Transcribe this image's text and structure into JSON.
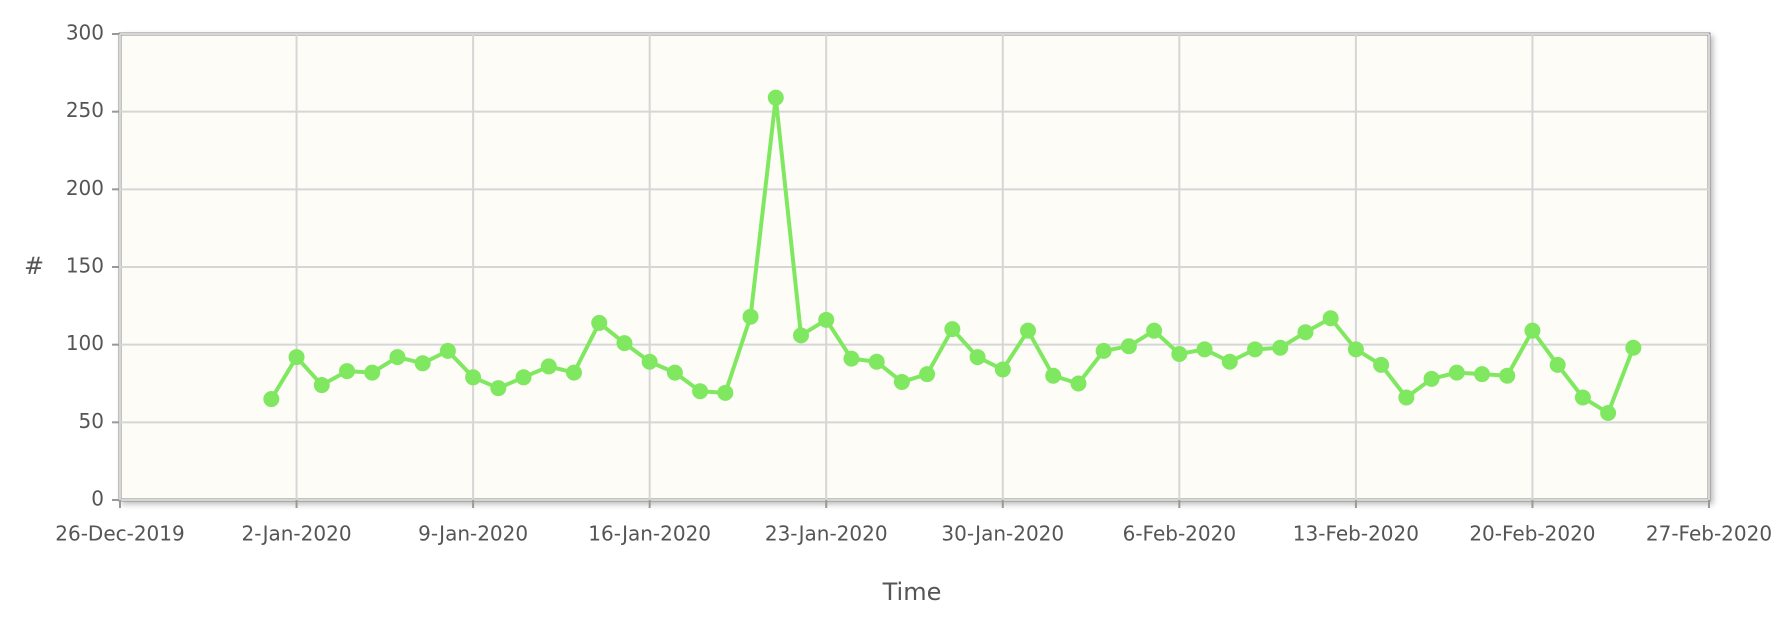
{
  "chart_data": {
    "type": "line",
    "x_label": "Time",
    "y_label": "#",
    "x": [
      "2020-01-01",
      "2020-01-02",
      "2020-01-03",
      "2020-01-04",
      "2020-01-05",
      "2020-01-06",
      "2020-01-07",
      "2020-01-08",
      "2020-01-09",
      "2020-01-10",
      "2020-01-11",
      "2020-01-12",
      "2020-01-13",
      "2020-01-14",
      "2020-01-15",
      "2020-01-16",
      "2020-01-17",
      "2020-01-18",
      "2020-01-19",
      "2020-01-20",
      "2020-01-21",
      "2020-01-22",
      "2020-01-23",
      "2020-01-24",
      "2020-01-25",
      "2020-01-26",
      "2020-01-27",
      "2020-01-28",
      "2020-01-29",
      "2020-01-30",
      "2020-01-31",
      "2020-02-01",
      "2020-02-02",
      "2020-02-03",
      "2020-02-04",
      "2020-02-05",
      "2020-02-06",
      "2020-02-07",
      "2020-02-08",
      "2020-02-09",
      "2020-02-10",
      "2020-02-11",
      "2020-02-12",
      "2020-02-13",
      "2020-02-14",
      "2020-02-15",
      "2020-02-16",
      "2020-02-17",
      "2020-02-18",
      "2020-02-19",
      "2020-02-20",
      "2020-02-21",
      "2020-02-22",
      "2020-02-23",
      "2020-02-24"
    ],
    "series": [
      {
        "color": "#80e860",
        "values": [
          65,
          92,
          74,
          83,
          82,
          92,
          88,
          96,
          79,
          72,
          79,
          86,
          82,
          114,
          101,
          89,
          82,
          70,
          69,
          118,
          259,
          106,
          116,
          91,
          89,
          76,
          81,
          110,
          92,
          84,
          109,
          80,
          75,
          96,
          99,
          109,
          94,
          97,
          89,
          97,
          98,
          108,
          117,
          97,
          87,
          66,
          78,
          82,
          81,
          80,
          109,
          87,
          66,
          56,
          98
        ]
      }
    ],
    "xlim": [
      "2019-12-26",
      "2020-02-27"
    ],
    "xticks": [
      {
        "value": "2019-12-26",
        "label": "26-Dec-2019"
      },
      {
        "value": "2020-01-02",
        "label": "2-Jan-2020"
      },
      {
        "value": "2020-01-09",
        "label": "9-Jan-2020"
      },
      {
        "value": "2020-01-16",
        "label": "16-Jan-2020"
      },
      {
        "value": "2020-01-23",
        "label": "23-Jan-2020"
      },
      {
        "value": "2020-01-30",
        "label": "30-Jan-2020"
      },
      {
        "value": "2020-02-06",
        "label": "6-Feb-2020"
      },
      {
        "value": "2020-02-13",
        "label": "13-Feb-2020"
      },
      {
        "value": "2020-02-20",
        "label": "20-Feb-2020"
      },
      {
        "value": "2020-02-27",
        "label": "27-Feb-2020"
      }
    ],
    "ylim": [
      0,
      300
    ],
    "yticks": [
      0,
      50,
      100,
      150,
      200,
      250,
      300
    ],
    "grid": true
  }
}
